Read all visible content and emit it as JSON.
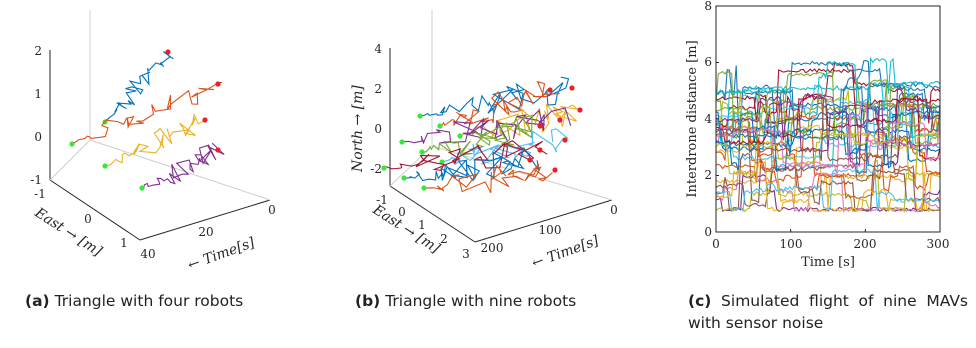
{
  "colors": [
    "#0072BD",
    "#D95319",
    "#EDB120",
    "#7E2F8E",
    "#77AC30",
    "#4DBEEE",
    "#A2142F"
  ],
  "start_marker_color": "#39e639",
  "end_marker_color": "#e8202a",
  "chart_data": [
    {
      "id": "a",
      "type": "line3d",
      "caption_label": "(a)",
      "caption_text": "Triangle with four robots",
      "zlabel": "",
      "ylabel": "East → [m]",
      "xlabel": "← Time[s]",
      "z_ticks": [
        "2",
        "1",
        "0",
        "-1"
      ],
      "y_ticks": [
        "-1",
        "0",
        "1"
      ],
      "x_ticks": [
        "0",
        "20",
        "40"
      ],
      "z_range": [
        -1,
        2
      ],
      "y_range": [
        -1,
        1
      ],
      "x_range": [
        0,
        40
      ],
      "series_count": 4
    },
    {
      "id": "b",
      "type": "line3d",
      "caption_label": "(b)",
      "caption_text": "Triangle with nine robots",
      "zlabel": "North → [m]",
      "ylabel": "East → [m]",
      "xlabel": "← Time[s]",
      "z_ticks": [
        "4",
        "2",
        "0",
        "-2"
      ],
      "y_ticks": [
        "-1",
        "0",
        "1",
        "2",
        "3"
      ],
      "x_ticks": [
        "0",
        "100",
        "200"
      ],
      "z_range": [
        -3,
        4
      ],
      "y_range": [
        -1,
        3
      ],
      "x_range": [
        0,
        250
      ],
      "series_count": 9
    },
    {
      "id": "c",
      "type": "line",
      "caption_label": "(c)",
      "caption_text": "Simulated flight of nine MAVs with sensor noise",
      "xlabel": "Time [s]",
      "ylabel": "Interdrone distance [m]",
      "x_ticks": [
        "0",
        "100",
        "200",
        "300"
      ],
      "y_ticks": [
        "0",
        "2",
        "4",
        "6",
        "8"
      ],
      "xlim": [
        0,
        300
      ],
      "ylim": [
        0,
        8
      ],
      "series_count": 36,
      "approx_level_range": [
        1,
        6
      ]
    }
  ]
}
